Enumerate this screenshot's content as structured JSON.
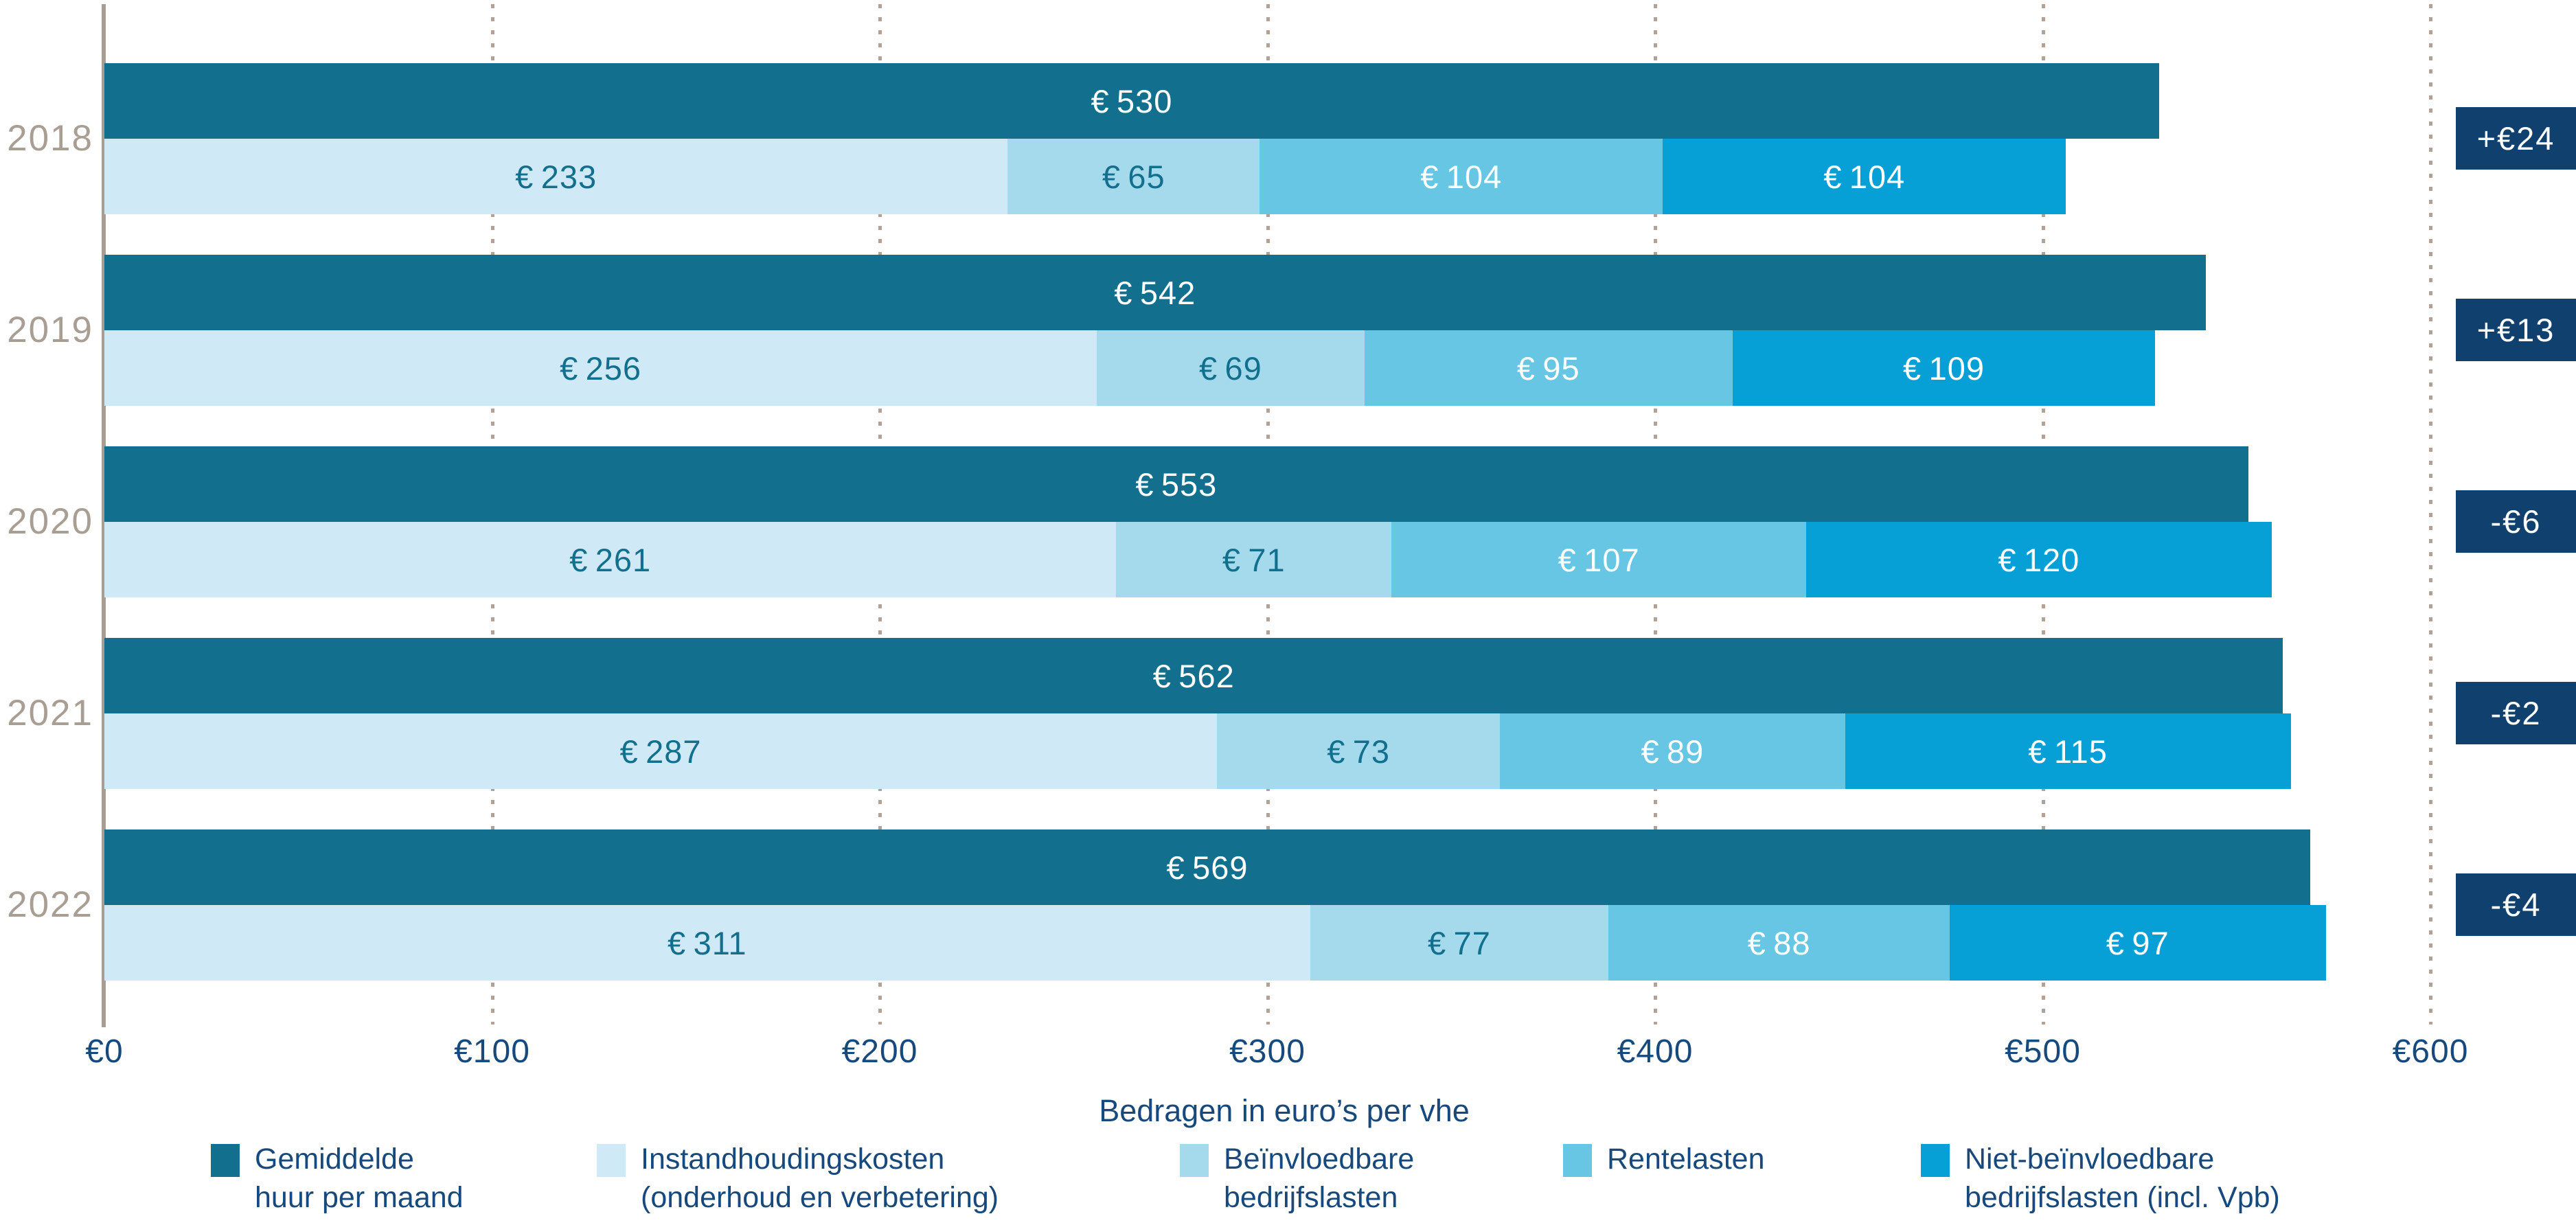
{
  "chart_data": {
    "type": "bar",
    "orientation": "horizontal",
    "xlabel": "Bedragen in euro’s per vhe",
    "xlim": [
      0,
      600
    ],
    "x_tick_values": [
      0,
      100,
      200,
      300,
      400,
      500,
      600
    ],
    "x_tick_labels": [
      "€0",
      "€100",
      "€200",
      "€300",
      "€400",
      "€500",
      "€600"
    ],
    "currency_prefix": "€",
    "grid": "dotted-vertical",
    "legend_position": "bottom",
    "categories": [
      "2018",
      "2019",
      "2020",
      "2021",
      "2022"
    ],
    "rent_series": {
      "name": "Gemiddelde huur per maand",
      "color": "#126f8e",
      "label_color": "#ffffff",
      "values": [
        530,
        542,
        553,
        562,
        569
      ]
    },
    "cost_series": [
      {
        "name": "Instandhoudingskosten (onderhoud en verbetering)",
        "color": "#cfe9f6",
        "label_color": "#126f8e",
        "values": [
          233,
          256,
          261,
          287,
          311
        ]
      },
      {
        "name": "Beïnvloedbare bedrijfslasten",
        "color": "#a5daec",
        "label_color": "#126f8e",
        "values": [
          65,
          69,
          71,
          73,
          77
        ]
      },
      {
        "name": "Rentelasten",
        "color": "#66c6e4",
        "label_color": "#ffffff",
        "values": [
          104,
          95,
          107,
          89,
          88
        ]
      },
      {
        "name": "Niet-beïnvloedbare bedrijfslasten (incl. Vpb)",
        "color": "#069fd6",
        "label_color": "#ffffff",
        "values": [
          104,
          109,
          120,
          115,
          97
        ]
      }
    ],
    "delta_badges": {
      "background": "#10406e",
      "text_color": "#ffffff",
      "values": [
        "+€24",
        "+€13",
        "-€6",
        "-€2",
        "-€4"
      ]
    }
  },
  "legend": {
    "items": [
      {
        "lines": [
          "Gemiddelde",
          "huur per maand"
        ],
        "color": "#126f8e"
      },
      {
        "lines": [
          "Instandhoudingskosten",
          "(onderhoud en verbetering)"
        ],
        "color": "#cfe9f6"
      },
      {
        "lines": [
          "Beïnvloedbare",
          "bedrijfslasten"
        ],
        "color": "#a5daec"
      },
      {
        "lines": [
          "Rentelasten"
        ],
        "color": "#66c6e4"
      },
      {
        "lines": [
          "Niet-beïnvloedbare",
          "bedrijfslasten (incl. Vpb)"
        ],
        "color": "#069fd6"
      }
    ]
  },
  "axis_style": {
    "axis_line_color": "#a89e94",
    "gridline_color": "#b3a195",
    "tick_text_color": "#17497d",
    "year_label_color": "#a89e94"
  }
}
